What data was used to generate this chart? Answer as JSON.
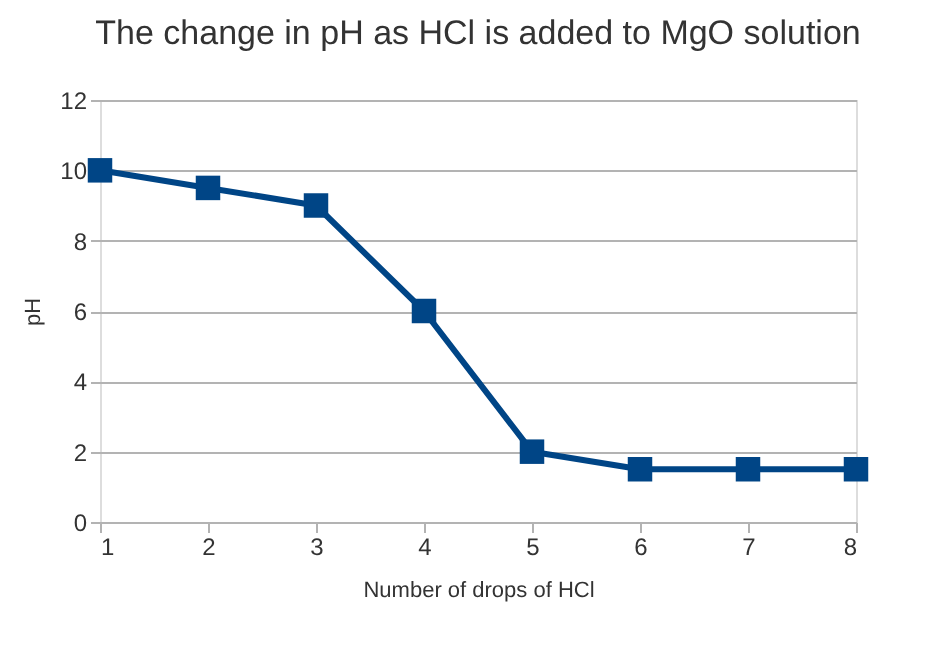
{
  "chart_data": {
    "type": "line",
    "title": "The change in pH as HCl is added to MgO solution",
    "xlabel": "Number of drops of HCl",
    "ylabel": "pH",
    "x": [
      1,
      2,
      3,
      4,
      5,
      6,
      7,
      8
    ],
    "series": [
      {
        "color": "#004586",
        "values": [
          10,
          9.5,
          9,
          6,
          2,
          1.5,
          1.5,
          1.5
        ]
      }
    ],
    "xlim": [
      1,
      8
    ],
    "xticks": [
      1,
      2,
      3,
      4,
      5,
      6,
      7,
      8
    ],
    "ylim": [
      0,
      12
    ],
    "yticks": [
      0,
      2,
      4,
      6,
      8,
      10,
      12
    ],
    "grid": "y",
    "marker": "square",
    "line_style": "solid"
  }
}
